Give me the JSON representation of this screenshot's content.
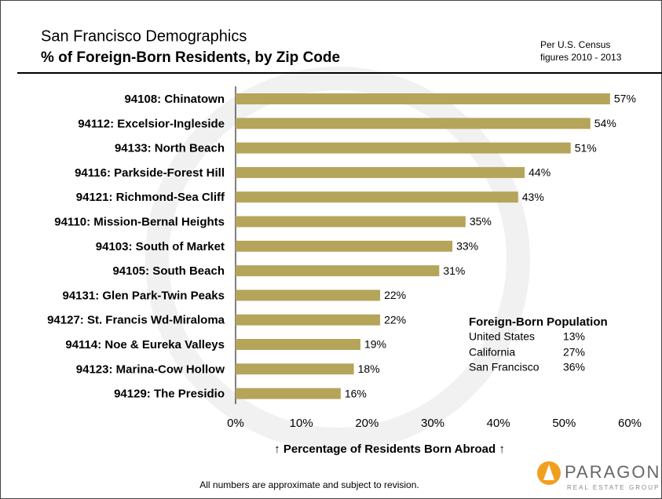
{
  "chart_data": {
    "type": "bar",
    "orientation": "horizontal",
    "title": "San Francisco Demographics",
    "subtitle": "% of Foreign-Born Residents, by Zip Code",
    "note": [
      "Per U.S. Census",
      "figures 2010 - 2013"
    ],
    "x_label": "↑ Percentage of Residents Born Abroad ↑",
    "footnote": "All numbers are approximate and subject to revision.",
    "categories": [
      "94108: Chinatown",
      "94112: Excelsior-Ingleside",
      "94133: North Beach",
      "94116: Parkside-Forest Hill",
      "94121: Richmond-Sea Cliff",
      "94110: Mission-Bernal Heights",
      "94103: South of Market",
      "94105: South Beach",
      "94131: Glen Park-Twin Peaks",
      "94127: St. Francis Wd-Miraloma",
      "94114: Noe & Eureka Valleys",
      "94123: Marina-Cow Hollow",
      "94129: The Presidio"
    ],
    "values": [
      57,
      54,
      51,
      44,
      43,
      35,
      33,
      31,
      22,
      22,
      19,
      18,
      16
    ],
    "value_labels": [
      "57%",
      "54%",
      "51%",
      "44%",
      "43%",
      "35%",
      "33%",
      "31%",
      "22%",
      "22%",
      "19%",
      "18%",
      "16%"
    ],
    "color": "#b5a55a",
    "xlim": [
      0,
      60
    ],
    "xticks": [
      {
        "value": 0,
        "label": "0%"
      },
      {
        "value": 10,
        "label": "10%"
      },
      {
        "value": 20,
        "label": "20%"
      },
      {
        "value": 30,
        "label": "30%"
      },
      {
        "value": 40,
        "label": "40%"
      },
      {
        "value": 50,
        "label": "50%"
      },
      {
        "value": 60,
        "label": "60%"
      }
    ],
    "inset": {
      "title": "Foreign-Born Population",
      "rows": [
        [
          "United States",
          "13%"
        ],
        [
          "California",
          "27%"
        ],
        [
          "San Francisco",
          "36%"
        ]
      ]
    }
  },
  "logo": {
    "name": "PARAGON",
    "tagline": "REAL ESTATE GROUP"
  }
}
